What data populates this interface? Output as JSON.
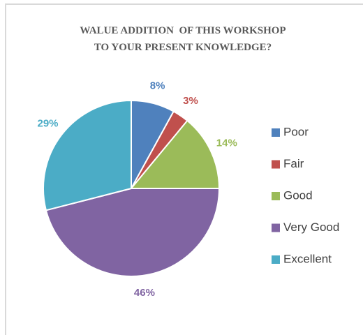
{
  "chart_data": {
    "type": "pie",
    "title": [
      "WALUE ADDITION  OF THIS WORKSHOP",
      "TO YOUR PRESENT KNOWLEDGE?"
    ],
    "categories": [
      "Poor",
      "Fair",
      "Good",
      "Very Good",
      "Excellent"
    ],
    "values": [
      8,
      3,
      14,
      46,
      29
    ],
    "value_labels": [
      "8%",
      "3%",
      "14%",
      "46%",
      "29%"
    ],
    "colors": [
      "#4f81bd",
      "#c0504d",
      "#9bbb59",
      "#8064a2",
      "#4bacc6"
    ],
    "legend": "right"
  }
}
